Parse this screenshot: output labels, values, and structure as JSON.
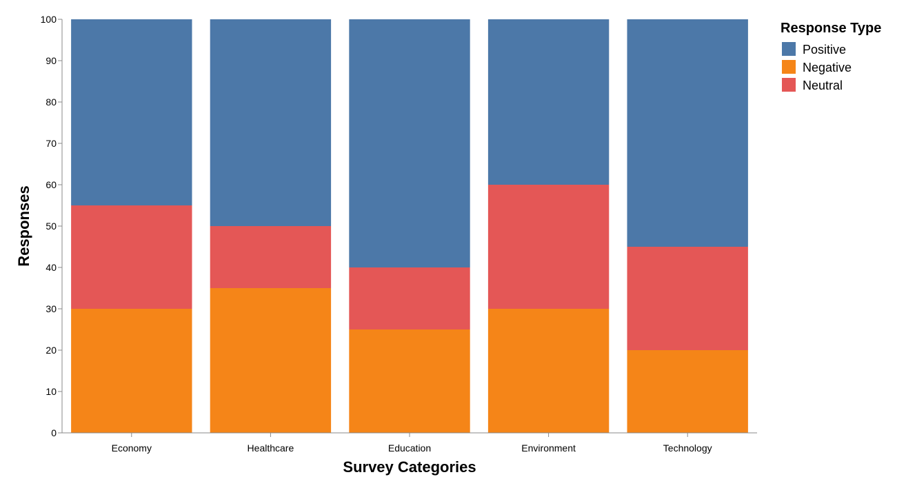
{
  "chart_data": {
    "type": "bar",
    "stacked": true,
    "categories": [
      "Economy",
      "Healthcare",
      "Education",
      "Environment",
      "Technology"
    ],
    "series": [
      {
        "name": "Negative",
        "color": "#f58518",
        "values": [
          30,
          35,
          25,
          30,
          20
        ]
      },
      {
        "name": "Neutral",
        "color": "#e45756",
        "values": [
          25,
          15,
          15,
          30,
          25
        ]
      },
      {
        "name": "Positive",
        "color": "#4c78a8",
        "values": [
          45,
          50,
          60,
          40,
          55
        ]
      }
    ],
    "xlabel": "Survey Categories",
    "ylabel": "Responses",
    "ylim": [
      0,
      100
    ],
    "yticks": [
      0,
      10,
      20,
      30,
      40,
      50,
      60,
      70,
      80,
      90,
      100
    ],
    "grid": false,
    "legend": {
      "title": "Response Type",
      "placement": "top-right",
      "entries": [
        "Positive",
        "Negative",
        "Neutral"
      ]
    }
  }
}
